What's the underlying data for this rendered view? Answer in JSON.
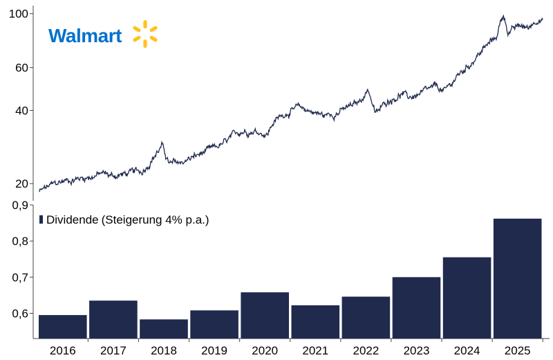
{
  "colors": {
    "bar": "#1f2a4d",
    "line": "#1f2a4d",
    "axis": "#444444",
    "logo_text": "#0071ce",
    "logo_spark": "#ffc220"
  },
  "logo": {
    "text": "Walmart",
    "icon": "spark-icon"
  },
  "chart_data": [
    {
      "type": "line",
      "title": "",
      "xlabel": "",
      "ylabel": "",
      "yscale": "log",
      "ylim": [
        17,
        108
      ],
      "yticks": [
        20,
        40,
        60,
        100
      ],
      "ytick_labels": [
        "20",
        "40",
        "60",
        "100"
      ],
      "xlim": [
        2015.5,
        2025.75
      ],
      "anchors": [
        [
          2015.5,
          18.5
        ],
        [
          2015.7,
          19.5
        ],
        [
          2016.0,
          20.5
        ],
        [
          2016.3,
          21.0
        ],
        [
          2016.6,
          21.5
        ],
        [
          2016.8,
          22.0
        ],
        [
          2017.0,
          21.5
        ],
        [
          2017.3,
          22.0
        ],
        [
          2017.6,
          22.5
        ],
        [
          2017.9,
          27.0
        ],
        [
          2018.0,
          28.5
        ],
        [
          2018.15,
          24.0
        ],
        [
          2018.4,
          24.5
        ],
        [
          2018.7,
          26.0
        ],
        [
          2018.9,
          27.0
        ],
        [
          2019.0,
          27.5
        ],
        [
          2019.3,
          29.5
        ],
        [
          2019.6,
          33.0
        ],
        [
          2019.9,
          33.0
        ],
        [
          2020.15,
          32.0
        ],
        [
          2020.25,
          35.5
        ],
        [
          2020.5,
          39.0
        ],
        [
          2020.8,
          41.0
        ],
        [
          2021.0,
          40.0
        ],
        [
          2021.3,
          38.0
        ],
        [
          2021.6,
          39.5
        ],
        [
          2021.9,
          42.0
        ],
        [
          2022.0,
          43.0
        ],
        [
          2022.2,
          49.0
        ],
        [
          2022.35,
          38.5
        ],
        [
          2022.6,
          44.0
        ],
        [
          2022.9,
          47.0
        ],
        [
          2023.0,
          45.0
        ],
        [
          2023.3,
          47.0
        ],
        [
          2023.6,
          50.0
        ],
        [
          2023.75,
          47.5
        ],
        [
          2024.0,
          55.0
        ],
        [
          2024.2,
          60.0
        ],
        [
          2024.5,
          70.0
        ],
        [
          2024.8,
          80.0
        ],
        [
          2024.95,
          100.0
        ],
        [
          2025.05,
          84.0
        ],
        [
          2025.3,
          89.0
        ],
        [
          2025.45,
          87.0
        ],
        [
          2025.65,
          96.0
        ],
        [
          2025.75,
          94.0
        ]
      ]
    },
    {
      "type": "bar",
      "title": "",
      "xlabel": "",
      "ylabel": "",
      "categories": [
        "2016",
        "2017",
        "2018",
        "2019",
        "2020",
        "2021",
        "2022",
        "2023",
        "2024",
        "2025"
      ],
      "series": [
        {
          "name": "Dividende (Steigerung 4% p.a.)",
          "values": [
            0.595,
            0.635,
            0.583,
            0.608,
            0.658,
            0.622,
            0.646,
            0.7,
            0.755,
            0.862
          ]
        }
      ],
      "ylim": [
        0.53,
        0.9
      ],
      "yticks": [
        0.6,
        0.7,
        0.8,
        0.9
      ],
      "ytick_labels": [
        "0,6",
        "0,7",
        "0,8",
        "0,9"
      ],
      "legend": {
        "position": "top-left",
        "label_main": "Dividende",
        "label_note": "(Steigerung 4% p.a.)"
      }
    }
  ]
}
